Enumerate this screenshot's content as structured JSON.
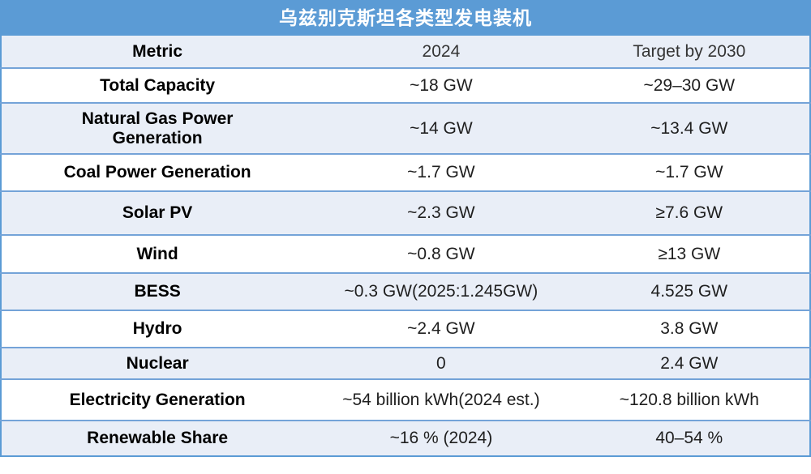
{
  "title": "乌兹别克斯坦各类型发电装机",
  "colors": {
    "title_bar_bg": "#5B9BD5",
    "title_text": "#FFFFFF",
    "band_row_bg": "#E9EEF7",
    "white_row_bg": "#FFFFFF",
    "border_blue": "#5B9BD5",
    "separator_blue": "#74A3D8",
    "body_text": "#1F1F1F"
  },
  "table": {
    "header": {
      "metric": "Metric",
      "y2024": "2024",
      "target": "Target by 2030"
    },
    "rows": [
      {
        "metric": "Total Capacity",
        "y2024": "~18 GW",
        "target": "~29–30 GW"
      },
      {
        "metric": "Natural Gas Power Generation",
        "y2024": "~14 GW",
        "target": "~13.4 GW"
      },
      {
        "metric": "Coal Power Generation",
        "y2024": "~1.7 GW",
        "target": "~1.7 GW"
      },
      {
        "metric": "Solar PV",
        "y2024": "~2.3 GW",
        "target": "≥7.6 GW"
      },
      {
        "metric": "Wind",
        "y2024": "~0.8 GW",
        "target": "≥13 GW"
      },
      {
        "metric": "BESS",
        "y2024": "~0.3 GW(2025:1.245GW)",
        "target": "4.525 GW"
      },
      {
        "metric": "Hydro",
        "y2024": "~2.4 GW",
        "target": "3.8 GW"
      },
      {
        "metric": "Nuclear",
        "y2024": "0",
        "target": "2.4 GW"
      },
      {
        "metric": "Electricity Generation",
        "y2024": "~54 billion kWh(2024 est.)",
        "target": "~120.8 billion kWh"
      },
      {
        "metric": "Renewable Share",
        "y2024": "~16 % (2024)",
        "target": "40–54 %"
      }
    ]
  },
  "chart_data": {
    "type": "table",
    "title": "乌兹别克斯坦各类型发电装机",
    "columns": [
      "Metric",
      "2024",
      "Target by 2030"
    ],
    "rows": [
      [
        "Total Capacity",
        "~18 GW",
        "~29–30 GW"
      ],
      [
        "Natural Gas Power Generation",
        "~14 GW",
        "~13.4 GW"
      ],
      [
        "Coal Power Generation",
        "~1.7 GW",
        "~1.7 GW"
      ],
      [
        "Solar PV",
        "~2.3 GW",
        "≥7.6 GW"
      ],
      [
        "Wind",
        "~0.8 GW",
        "≥13 GW"
      ],
      [
        "BESS",
        "~0.3 GW(2025:1.245GW)",
        "4.525 GW"
      ],
      [
        "Hydro",
        "~2.4 GW",
        "3.8 GW"
      ],
      [
        "Nuclear",
        "0",
        "2.4 GW"
      ],
      [
        "Electricity Generation",
        "~54 billion kWh(2024 est.)",
        "~120.8 billion kWh"
      ],
      [
        "Renewable Share",
        "~16 % (2024)",
        "40–54 %"
      ]
    ],
    "layout_hints": {
      "banded_rows": true,
      "band_color": "#E9EEF7",
      "header_style": "blue title bar above light header row",
      "alignment": "all cells centered"
    }
  }
}
